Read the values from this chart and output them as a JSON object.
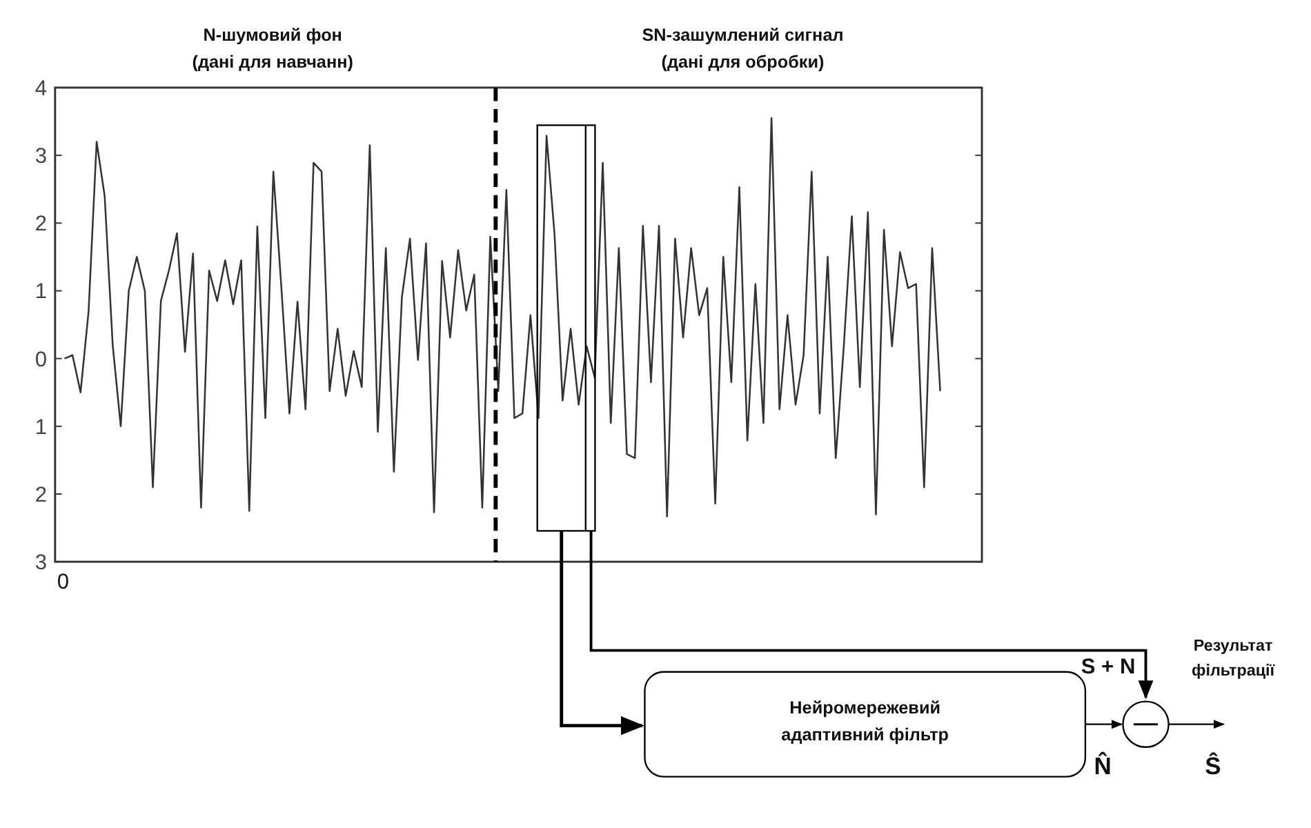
{
  "chart_data": {
    "type": "line",
    "categories": [
      null,
      null,
      null,
      null,
      null,
      null,
      null,
      null,
      null,
      null,
      null,
      null,
      null,
      null,
      null,
      null,
      null,
      null,
      null,
      null,
      null,
      null,
      null,
      null,
      null,
      null,
      null,
      null,
      null,
      null,
      null,
      null,
      null,
      null,
      null,
      null,
      null,
      null,
      null,
      null,
      null,
      null,
      null,
      null,
      null,
      null,
      null,
      null,
      null,
      null,
      null,
      null,
      null,
      null,
      null,
      null,
      null,
      null,
      null,
      null,
      null,
      null,
      null,
      null,
      null,
      null,
      null,
      null,
      null,
      null,
      null,
      null,
      null,
      null,
      null,
      null,
      null,
      null,
      null,
      null,
      null,
      null,
      null,
      null,
      null,
      null,
      null,
      null,
      null,
      null,
      null,
      null,
      null,
      null,
      null,
      null,
      null,
      null,
      null,
      null,
      null,
      null,
      null,
      null,
      null,
      null,
      null,
      null,
      null,
      null
    ],
    "series": [
      {
        "color": "#333333",
        "values": [
          0.0,
          0.05,
          -0.5,
          0.7,
          3.2,
          2.4,
          0.2,
          -1.0,
          1.0,
          1.5,
          1.0,
          -1.9,
          0.85,
          1.3,
          1.85,
          0.1,
          1.55,
          -2.2,
          1.3,
          0.85,
          1.45,
          0.8,
          1.45,
          -2.25,
          1.95,
          -0.88,
          2.76,
          1.04,
          -0.81,
          0.84,
          -0.75,
          2.89,
          2.76,
          -0.48,
          0.44,
          -0.55,
          0.11,
          -0.42,
          3.15,
          -1.08,
          1.63,
          -1.67,
          0.91,
          1.77,
          -0.02,
          1.7,
          -2.27,
          1.44,
          0.31,
          1.6,
          0.71,
          1.24,
          -2.2,
          1.8,
          -0.48,
          2.49,
          -0.88,
          -0.81,
          0.64,
          -0.88,
          3.29,
          1.83,
          -0.62,
          0.44,
          -0.68,
          0.18,
          -0.28,
          2.89,
          -0.95,
          1.63,
          -1.41,
          -1.47,
          1.96,
          -0.35,
          1.96,
          -2.33,
          1.77,
          0.31,
          1.63,
          0.64,
          1.04,
          -2.14,
          1.5,
          -0.35,
          2.53,
          -1.21,
          1.1,
          -0.95,
          3.55,
          -0.75,
          0.64,
          -0.68,
          0.05,
          2.76,
          -0.81,
          1.5,
          -1.47,
          0.18,
          2.1,
          -0.42,
          2.16,
          -2.3,
          1.9,
          0.18,
          1.57,
          1.04,
          1.1,
          -1.9,
          1.63,
          -0.48
        ]
      }
    ],
    "ylim": [
      -3,
      4
    ],
    "yticks": [
      4,
      3,
      2,
      1,
      0,
      {
        "value": -1,
        "label": "1"
      },
      {
        "value": -2,
        "label": "2"
      },
      {
        "value": -3,
        "label": "3"
      }
    ],
    "grid": false,
    "marker": "none",
    "line_style": "solid",
    "annotations": [
      "N-шумовий фон\n(дані для навчанн)",
      "SN-зашумлений сигнал\n(дані для обробки)",
      "Нейромережевий\nадаптивний фільтр",
      "S + N",
      "Результат\nфільтрації",
      "N̂",
      "Ŝ",
      "0"
    ]
  }
}
